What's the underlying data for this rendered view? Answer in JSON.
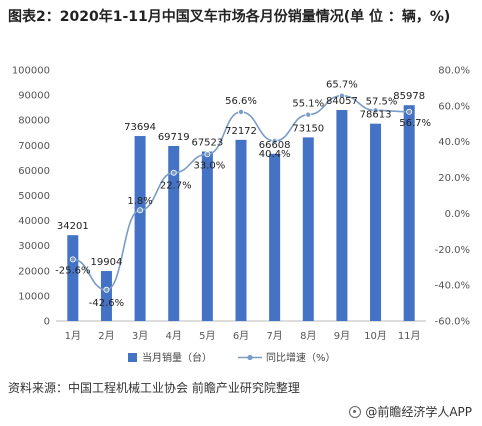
{
  "title": "图表2：2020年1-11月中国叉车市场各月份销量情况(单 位 ：辆，%)",
  "source": "资料来源：中国工程机械工业协会 前瞻产业研究院整理",
  "brand": "@前瞻经济学人APP",
  "colors": {
    "bar": "#4472c4",
    "line": "#7a9cc6"
  },
  "chart_data": {
    "type": "bar",
    "categories": [
      "1月",
      "2月",
      "3月",
      "4月",
      "5月",
      "6月",
      "7月",
      "8月",
      "9月",
      "10月",
      "11月"
    ],
    "series": [
      {
        "name": "当月销量（台）",
        "type": "bar",
        "axis": "left",
        "values": [
          34201,
          19904,
          73694,
          69719,
          67523,
          72172,
          66608,
          73150,
          84057,
          78613,
          85978
        ]
      },
      {
        "name": "同比增速（%）",
        "type": "line",
        "axis": "right",
        "values": [
          -25.6,
          -42.6,
          1.8,
          22.7,
          33.0,
          56.6,
          40.4,
          55.1,
          65.7,
          57.5,
          56.7
        ]
      }
    ],
    "bar_labels": [
      "34201",
      "19904",
      "73694",
      "69719",
      "67523",
      "72172",
      "66608",
      "73150",
      "84057",
      "78613",
      "85978"
    ],
    "line_labels": [
      "-25.6%",
      "-42.6%",
      "1.8%",
      "22.7%",
      "33.0%",
      "56.6%",
      "40.4%",
      "55.1%",
      "65.7%",
      "57.5%",
      "56.7%"
    ],
    "y_left": {
      "min": 0,
      "max": 100000,
      "step": 10000,
      "ticks": [
        "0",
        "10000",
        "20000",
        "30000",
        "40000",
        "50000",
        "60000",
        "70000",
        "80000",
        "90000",
        "100000"
      ]
    },
    "y_right": {
      "min": -60,
      "max": 80,
      "step": 20,
      "ticks": [
        "-60.0%",
        "-40.0%",
        "-20.0%",
        "0.0%",
        "20.0%",
        "40.0%",
        "60.0%",
        "80.0%"
      ]
    },
    "legend_position": "bottom",
    "grid": false
  }
}
